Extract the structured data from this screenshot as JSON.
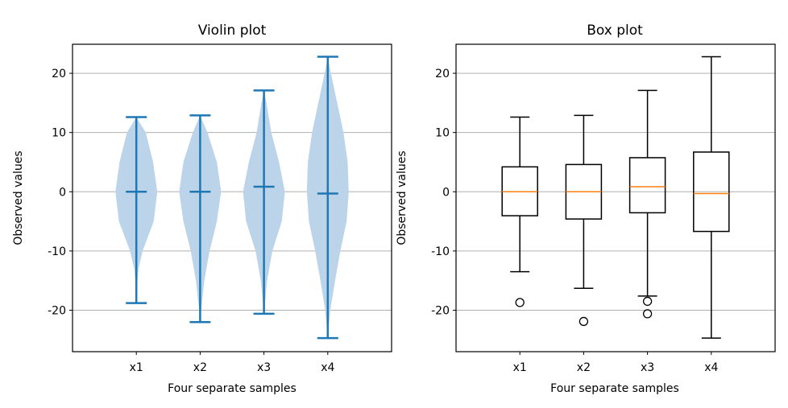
{
  "chart_data": [
    {
      "type": "violin",
      "title": "Violin plot",
      "xlabel": "Four separate samples",
      "ylabel": "Observed values",
      "categories": [
        "x1",
        "x2",
        "x3",
        "x4"
      ],
      "ylim": [
        -27,
        24.9
      ],
      "yticks": [
        -20,
        -10,
        0,
        10,
        20
      ],
      "grid": "y",
      "color": "#1f77b4",
      "fill_color": "#bbd4e9",
      "series": [
        {
          "max": 12.6,
          "min": -18.8,
          "mean": 0.0,
          "density": [
            [
              12.6,
              0
            ],
            [
              10,
              0.45
            ],
            [
              5,
              0.8
            ],
            [
              0,
              1
            ],
            [
              -5,
              0.83
            ],
            [
              -10,
              0.3
            ],
            [
              -13,
              0.1
            ],
            [
              -15,
              0.05
            ],
            [
              -18.8,
              0
            ]
          ]
        },
        {
          "max": 12.9,
          "min": -22.0,
          "mean": 0.0,
          "density": [
            [
              12.9,
              0
            ],
            [
              10,
              0.35
            ],
            [
              5,
              0.8
            ],
            [
              0,
              1
            ],
            [
              -5,
              0.8
            ],
            [
              -10,
              0.45
            ],
            [
              -15,
              0.2
            ],
            [
              -20,
              0.05
            ],
            [
              -22,
              0
            ]
          ]
        },
        {
          "max": 17.1,
          "min": -20.6,
          "mean": 0.85,
          "density": [
            [
              17.1,
              0
            ],
            [
              15,
              0.12
            ],
            [
              10,
              0.35
            ],
            [
              5,
              0.72
            ],
            [
              0,
              1
            ],
            [
              -5,
              0.85
            ],
            [
              -10,
              0.4
            ],
            [
              -15,
              0.15
            ],
            [
              -20.6,
              0
            ]
          ]
        },
        {
          "max": 22.8,
          "min": -24.7,
          "mean": -0.3,
          "density": [
            [
              22.8,
              0
            ],
            [
              20,
              0.15
            ],
            [
              15,
              0.45
            ],
            [
              10,
              0.75
            ],
            [
              5,
              0.95
            ],
            [
              0,
              1
            ],
            [
              -5,
              0.9
            ],
            [
              -10,
              0.6
            ],
            [
              -15,
              0.35
            ],
            [
              -20,
              0.12
            ],
            [
              -24.7,
              0
            ]
          ]
        }
      ]
    },
    {
      "type": "box",
      "title": "Box plot",
      "xlabel": "Four separate samples",
      "ylabel": "Observed values",
      "categories": [
        "x1",
        "x2",
        "x3",
        "x4"
      ],
      "ylim": [
        -27,
        24.9
      ],
      "yticks": [
        -20,
        -10,
        0,
        10,
        20
      ],
      "grid": "y",
      "median_color": "#ff7f0e",
      "series": [
        {
          "whisker_high": 12.6,
          "q3": 4.2,
          "median": 0.0,
          "q1": -4.05,
          "whisker_low": -13.5,
          "outliers": [
            -18.7
          ]
        },
        {
          "whisker_high": 12.9,
          "q3": 4.6,
          "median": 0.0,
          "q1": -4.6,
          "whisker_low": -16.3,
          "outliers": [
            -21.9
          ]
        },
        {
          "whisker_high": 17.1,
          "q3": 5.75,
          "median": 0.85,
          "q1": -3.55,
          "whisker_low": -17.6,
          "outliers": [
            -18.5,
            -20.6
          ]
        },
        {
          "whisker_high": 22.8,
          "q3": 6.7,
          "median": -0.3,
          "q1": -6.7,
          "whisker_low": -24.7,
          "outliers": []
        }
      ]
    }
  ]
}
